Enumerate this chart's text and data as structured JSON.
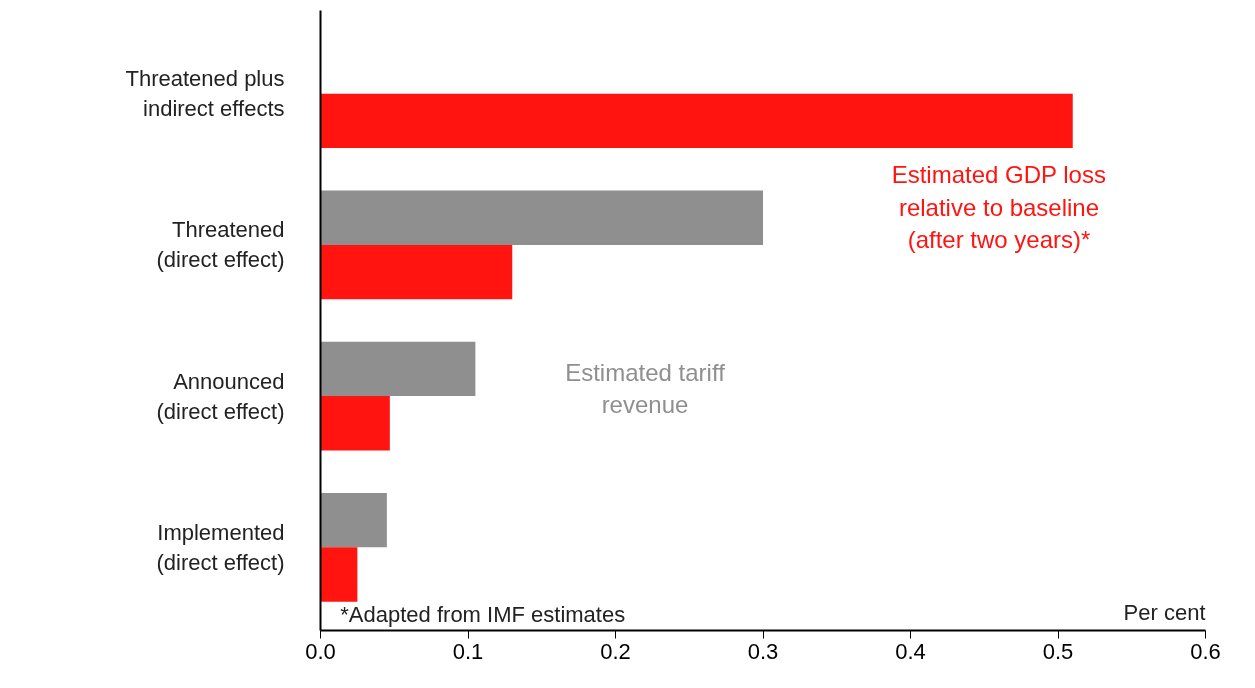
{
  "chart_data": {
    "type": "bar",
    "orientation": "horizontal",
    "xlabel": "Per cent",
    "categories": [
      "Threatened plus\nindirect effects",
      "Threatened\n(direct effect)",
      "Announced\n(direct effect)",
      "Implemented\n(direct effect)"
    ],
    "series": [
      {
        "name": "Estimated tariff\nrevenue",
        "color": "#8f8f8f",
        "values": [
          null,
          0.3,
          0.105,
          0.045
        ]
      },
      {
        "name": "Estimated GDP loss\nrelative to baseline\n(after two years)*",
        "color": "#ff1410",
        "values": [
          0.51,
          0.13,
          0.047,
          0.025
        ]
      }
    ],
    "xlim": [
      0,
      0.6
    ],
    "xticks": [
      {
        "value": 0,
        "label": "0.0"
      },
      0.1,
      0.2,
      0.3,
      0.4,
      0.5,
      0.6
    ],
    "annotations": [
      "*Adapted from IMF estimates"
    ],
    "grid": false
  }
}
